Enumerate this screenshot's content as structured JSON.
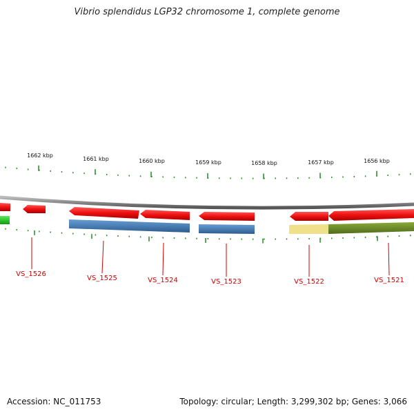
{
  "title": "Vibrio splendidus LGP32 chromosome 1, complete genome",
  "footer": {
    "accession": "Accession: NC_011753",
    "summary": "Topology: circular; Length: 3,299,302 bp; Genes: 3,066"
  },
  "colors": {
    "backbone": "#888888",
    "forward_gene": "#ee1111",
    "reverse_gene": "#4a7fb5",
    "tick": "#228b22",
    "label": "#cc0000",
    "green_feature": "#22cc22",
    "olive_feature": "#6b8e23",
    "pale_feature": "#f0e08a"
  },
  "scale_labels": [
    "1662 kbp",
    "1661 kbp",
    "1660 kbp",
    "1659 kbp",
    "1658 kbp",
    "1657 kbp",
    "1656 kbp"
  ],
  "genes": [
    {
      "label": "VS_1526"
    },
    {
      "label": "VS_1525"
    },
    {
      "label": "VS_1524"
    },
    {
      "label": "VS_1523"
    },
    {
      "label": "VS_1522"
    },
    {
      "label": "VS_1521"
    }
  ]
}
